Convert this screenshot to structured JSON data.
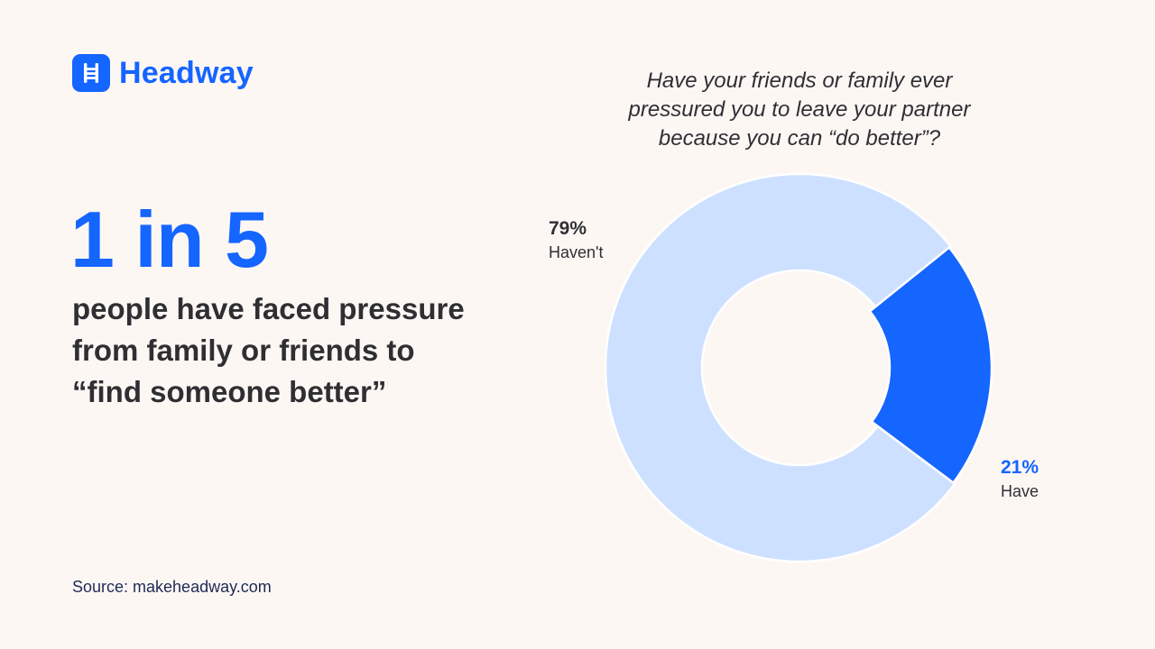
{
  "brand": {
    "name": "Headway",
    "icon": "ladder-icon",
    "color": "#1565ff"
  },
  "headline": {
    "stat": "1 in 5",
    "description": "people have faced pressure from family or friends to “find someone better”"
  },
  "source": "Source: makeheadway.com",
  "chart_data": {
    "type": "pie",
    "title": "Have your friends or family ever pressured you to leave your partner because you can “do better”?",
    "donut": true,
    "slices": [
      {
        "label": "Haven't",
        "value": 79,
        "display": "79%",
        "color": "#cde0ff"
      },
      {
        "label": "Have",
        "value": 21,
        "display": "21%",
        "color": "#1565ff"
      }
    ]
  }
}
